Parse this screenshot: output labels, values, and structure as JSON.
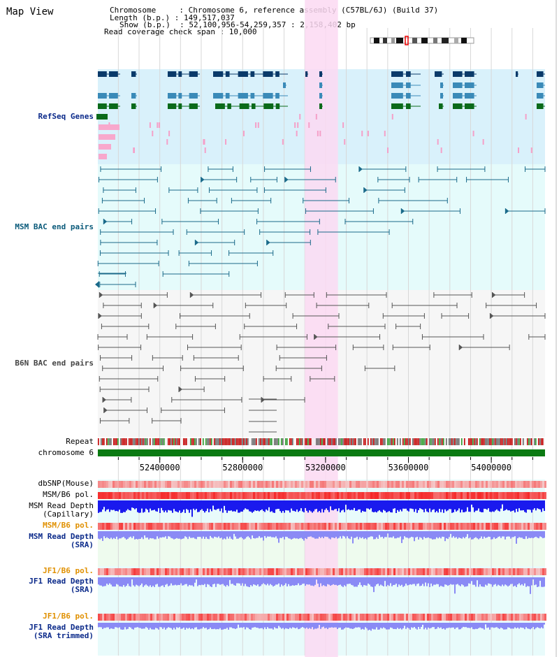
{
  "page": {
    "title": "Map View"
  },
  "info": {
    "line1": "Chromosome     : Chromosome 6, reference assembly (C57BL/6J) (Build 37)",
    "line2": "Length (b.p.) : 149,517,037",
    "line3": "Show (b.p.)  : 52,100,956-54,259,357 : 2,158,402 bp",
    "line4": "Read coverage check span : 10,000"
  },
  "tracks": {
    "refseq": "RefSeq Genes",
    "msm_bac": "MSM BAC end pairs",
    "b6n_bac": "B6N BAC end pairs",
    "repeat": "Repeat",
    "chromosome": "chromosome 6",
    "dbsnp": "dbSNP(Mouse)",
    "msm_b6_pol": "MSM/B6 pol.",
    "msm_depth_cap": "MSM Read Depth\n(Capillary)",
    "msm_b6_pol_sra": "MSM/B6 pol.",
    "msm_depth_sra": "MSM Read Depth\n(SRA)",
    "jf1_b6_pol": "JF1/B6 pol.",
    "jf1_depth_sra": "JF1 Read Depth\n(SRA)",
    "jf1_b6_pol_trim": "JF1/B6 pol.",
    "jf1_depth_trim": "JF1 Read Depth\n(SRA trimmed)"
  },
  "axis": {
    "ticks": [
      {
        "label": "52400000",
        "value": 52400000
      },
      {
        "label": "52800000",
        "value": 52800000
      },
      {
        "label": "53200000",
        "value": 53200000
      },
      {
        "label": "53600000",
        "value": 53600000
      },
      {
        "label": "54000000",
        "value": 54000000
      }
    ],
    "start": 52100956,
    "end": 54259357
  },
  "highlight": {
    "start": 53100000,
    "end": 53260000
  },
  "colors": {
    "refseq_bg": "#d9f1fb",
    "msm_bg": "#e5fbfb",
    "b6n_bg": "#f6f6f6",
    "highlight": "#fbd9f2",
    "gene_dark": "#0a3a6a",
    "gene_mid": "#3a8ab8",
    "gene_green": "#0a6a1a",
    "chromosome": "#0a7a12",
    "bac_msm": "#1a6a8a",
    "bac_b6n": "#555555",
    "depth": "#1a1aee",
    "depth_light": "#8a8af5"
  }
}
